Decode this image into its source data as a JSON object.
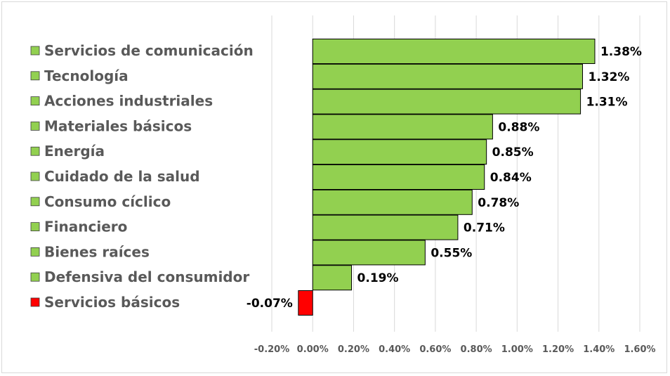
{
  "chart_data": {
    "type": "bar",
    "orientation": "horizontal",
    "categories": [
      "Servicios de comunicación",
      "Tecnología",
      "Acciones industriales",
      "Materiales básicos",
      "Energía",
      "Cuidado de la salud",
      "Consumo cíclico",
      "Financiero",
      "Bienes raíces",
      "Defensiva del consumidor",
      "Servicios básicos"
    ],
    "values": [
      1.38,
      1.32,
      1.31,
      0.88,
      0.85,
      0.84,
      0.78,
      0.71,
      0.55,
      0.19,
      -0.07
    ],
    "data_labels": [
      "1.38%",
      "1.32%",
      "1.31%",
      "0.88%",
      "0.85%",
      "0.84%",
      "0.78%",
      "0.71%",
      "0.55%",
      "0.19%",
      "-0.07%"
    ],
    "value_unit": "%",
    "xlim": [
      -0.2,
      1.6
    ],
    "x_ticks": [
      -0.2,
      0.0,
      0.2,
      0.4,
      0.6,
      0.8,
      1.0,
      1.2,
      1.4,
      1.6
    ],
    "x_tick_labels": [
      "-0.20%",
      "0.00%",
      "0.20%",
      "0.40%",
      "0.60%",
      "0.80%",
      "1.00%",
      "1.20%",
      "1.40%",
      "1.60%"
    ],
    "grid": "vertical",
    "legend_position": "left",
    "colors": {
      "positive": "#92d050",
      "negative": "#ff0000",
      "bar_border": "#000000",
      "grid": "#d9d9d9",
      "legend_text": "#595959"
    },
    "title": "",
    "xlabel": "",
    "ylabel": ""
  }
}
